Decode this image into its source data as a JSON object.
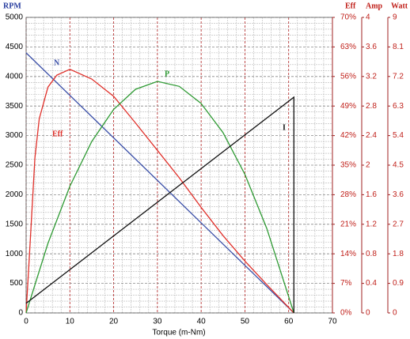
{
  "chart_data": {
    "type": "line",
    "x_label": "Torque (m-Nm)",
    "y_label": "RPM",
    "y2_label": "Eff",
    "y3_label": "Amp",
    "y4_label": "Watt",
    "xlim": [
      0,
      70
    ],
    "xticks": [
      0,
      10,
      20,
      30,
      40,
      50,
      60,
      70
    ],
    "ylim": [
      0,
      5000
    ],
    "yticks": [
      0,
      500,
      1000,
      1500,
      2000,
      2500,
      3000,
      3500,
      4000,
      4500,
      5000
    ],
    "y2lim": [
      0,
      70
    ],
    "y2ticks": [
      {
        "value": 0,
        "label": "0%"
      },
      {
        "value": 7,
        "label": "7%"
      },
      {
        "value": 14,
        "label": "14%"
      },
      {
        "value": 21,
        "label": "21%"
      },
      {
        "value": 28,
        "label": "28%"
      },
      {
        "value": 35,
        "label": "35%"
      },
      {
        "value": 42,
        "label": "42%"
      },
      {
        "value": 49,
        "label": "49%"
      },
      {
        "value": 56,
        "label": "56%"
      },
      {
        "value": 63,
        "label": "63%"
      },
      {
        "value": 70,
        "label": "70%"
      }
    ],
    "y3lim": [
      0,
      4
    ],
    "y3ticks": [
      0,
      0.4,
      0.8,
      1.2,
      1.6,
      2,
      2.4,
      2.8,
      3.2,
      3.6,
      4
    ],
    "y4lim": [
      0,
      9
    ],
    "y4ticks": [
      0,
      0.9,
      1.8,
      2.7,
      3.6,
      4.5,
      5.4,
      6.3,
      7.2,
      8.1,
      9
    ],
    "grid": true,
    "series": [
      {
        "name": "N",
        "color": "#3a4fa8",
        "axis": "y",
        "x": [
          0,
          61.2
        ],
        "values": [
          4400,
          0
        ]
      },
      {
        "name": "Eff",
        "color": "#e0302a",
        "axis": "y2",
        "x": [
          0,
          1,
          2,
          3,
          5,
          7,
          10,
          15,
          20,
          25,
          30,
          35,
          40,
          45,
          50,
          55,
          61.2
        ],
        "values": [
          0,
          18,
          36.7,
          46,
          53.5,
          56.3,
          57.7,
          55.4,
          51.3,
          45,
          38.5,
          32,
          25,
          18.3,
          12.3,
          6.7,
          0
        ]
      },
      {
        "name": "P",
        "color": "#2e9a33",
        "axis": "y4",
        "x": [
          0,
          5,
          10,
          15,
          20,
          25,
          30,
          35,
          40,
          45,
          50,
          55,
          61.2
        ],
        "values": [
          0,
          2.12,
          3.86,
          5.22,
          6.2,
          6.81,
          7.05,
          6.9,
          6.38,
          5.49,
          4.22,
          2.57,
          0
        ]
      },
      {
        "name": "I",
        "color": "#111111",
        "axis": "y3",
        "x": [
          0,
          61.2,
          61.2
        ],
        "values": [
          0.13,
          2.92,
          0
        ]
      }
    ]
  }
}
